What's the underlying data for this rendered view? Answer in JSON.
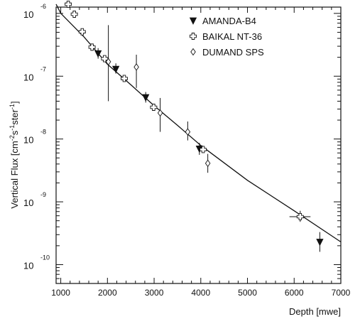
{
  "chart_data": {
    "type": "scatter",
    "xlabel": "Depth [mwe]",
    "ylabel": {
      "prefix": "Vertical Flux [cm",
      "sup1": "-2",
      "mid1": "s",
      "sup2": "-1",
      "mid2": "ster",
      "sup3": "-1",
      "suffix": "]"
    },
    "xlim": [
      900,
      7000
    ],
    "ylim_log10": [
      -10.3,
      -5.9
    ],
    "y_scale": "log",
    "grid": false,
    "legend_position": "top-right",
    "x_ticks": [
      1000,
      2000,
      3000,
      4000,
      5000,
      6000,
      7000
    ],
    "y_ticks": [
      {
        "base": "10",
        "exp": "-6",
        "log10": -6
      },
      {
        "base": "10",
        "exp": "-7",
        "log10": -7
      },
      {
        "base": "10",
        "exp": "-8",
        "log10": -8
      },
      {
        "base": "10",
        "exp": "-9",
        "log10": -9
      },
      {
        "base": "10",
        "exp": "-10",
        "log10": -10
      }
    ],
    "series": [
      {
        "name": "AMANDA-B4",
        "marker": "triangle-down-filled",
        "points": [
          {
            "x": 1800,
            "y": 2.3e-07,
            "y_err": [
              1.9e-07,
              2.8e-07
            ]
          },
          {
            "x": 2180,
            "y": 1.3e-07,
            "y_err": [
              1.1e-07,
              1.6e-07
            ]
          },
          {
            "x": 2820,
            "y": 4.6e-08,
            "y_err": [
              3.8e-08,
              5.6e-08
            ]
          },
          {
            "x": 3970,
            "y": 7e-09,
            "y_err": [
              5.6e-09,
              8.7e-09
            ]
          },
          {
            "x": 6550,
            "y": 2.3e-10,
            "y_err": [
              1.6e-10,
              3.3e-10
            ]
          }
        ]
      },
      {
        "name": "BAIKAL NT-36",
        "marker": "cross-open",
        "points": [
          {
            "x": 1160,
            "y": 1.4e-06,
            "x_err": [
              1110,
              1210
            ]
          },
          {
            "x": 1290,
            "y": 9.7e-07,
            "x_err": [
              1240,
              1340
            ]
          },
          {
            "x": 1460,
            "y": 5.1e-07,
            "x_err": [
              1410,
              1510
            ]
          },
          {
            "x": 1670,
            "y": 2.9e-07,
            "x_err": [
              1620,
              1720
            ]
          },
          {
            "x": 1940,
            "y": 1.9e-07,
            "x_err": [
              1890,
              1990
            ]
          },
          {
            "x": 2360,
            "y": 9.2e-08,
            "x_err": [
              2290,
              2430
            ]
          },
          {
            "x": 2990,
            "y": 3.2e-08,
            "x_err": [
              2920,
              3060
            ]
          },
          {
            "x": 4050,
            "y": 6.8e-09,
            "x_err": [
              3980,
              4130
            ]
          },
          {
            "x": 6130,
            "y": 5.8e-10,
            "x_err": [
              5900,
              6350
            ],
            "y_err": [
              4.8e-10,
              7.2e-10
            ]
          }
        ]
      },
      {
        "name": "DUMAND SPS",
        "marker": "diamond-open",
        "points": [
          {
            "x": 2020,
            "y": 1.7e-07,
            "y_err": [
              4e-08,
              6.5e-07
            ]
          },
          {
            "x": 2620,
            "y": 1.4e-07,
            "y_err": [
              6.5e-08,
              2.2e-07
            ]
          },
          {
            "x": 3130,
            "y": 2.6e-08,
            "y_err": [
              1.3e-08,
              4.5e-08
            ]
          },
          {
            "x": 3720,
            "y": 1.3e-08,
            "y_err": [
              9.5e-09,
              1.9e-08
            ]
          },
          {
            "x": 4150,
            "y": 4.1e-09,
            "y_err": [
              2.9e-09,
              5.8e-09
            ]
          }
        ]
      },
      {
        "type": "line",
        "marker": "none",
        "points": [
          {
            "x": 900,
            "y": 1.4e-06
          },
          {
            "x": 1000,
            "y": 1e-06
          },
          {
            "x": 1500,
            "y": 4.2e-07
          },
          {
            "x": 2000,
            "y": 1.55e-07
          },
          {
            "x": 2500,
            "y": 7.3e-08
          },
          {
            "x": 3000,
            "y": 3.4e-08
          },
          {
            "x": 3500,
            "y": 1.65e-08
          },
          {
            "x": 4000,
            "y": 7.9e-09
          },
          {
            "x": 5000,
            "y": 2.2e-09
          },
          {
            "x": 6000,
            "y": 7.2e-10
          },
          {
            "x": 7000,
            "y": 2.3e-10
          }
        ]
      }
    ]
  }
}
